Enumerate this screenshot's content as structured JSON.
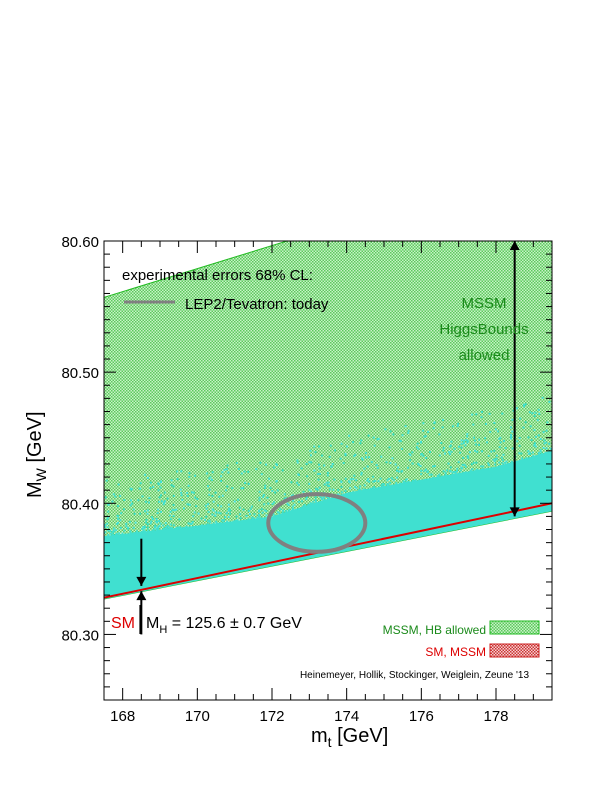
{
  "chart_data": {
    "type": "area",
    "xlabel": "m",
    "xlabel_sub": "t",
    "xlabel_unit": " [GeV]",
    "ylabel": "M",
    "ylabel_sub": "W",
    "ylabel_unit": " [GeV]",
    "xlim": [
      167.5,
      179.5
    ],
    "ylim": [
      80.25,
      80.6
    ],
    "x_ticks": [
      168,
      170,
      172,
      174,
      176,
      178
    ],
    "x_tick_labels": [
      "168",
      "170",
      "172",
      "174",
      "176",
      "178"
    ],
    "y_ticks": [
      80.3,
      80.4,
      80.5,
      80.6
    ],
    "y_tick_labels": [
      "80.30",
      "80.40",
      "80.50",
      "80.60"
    ],
    "regions": [
      {
        "name": "MSSM, HB allowed",
        "color": "#7fdc7f",
        "points": [
          [
            167.5,
            80.557
          ],
          [
            172.4,
            80.6
          ],
          [
            179.5,
            80.6
          ],
          [
            179.5,
            80.394
          ],
          [
            167.5,
            80.327
          ]
        ]
      },
      {
        "name": "MSSM cyan band",
        "color": "#40e0d0",
        "upper_edge": [
          [
            167.5,
            80.375
          ],
          [
            170,
            80.383
          ],
          [
            172,
            80.39
          ],
          [
            174,
            80.408
          ],
          [
            176,
            80.418
          ],
          [
            178,
            80.428
          ],
          [
            179.5,
            80.44
          ]
        ],
        "lower_edge": [
          [
            167.5,
            80.327
          ],
          [
            179.5,
            80.394
          ]
        ]
      },
      {
        "name": "SM, MSSM",
        "color": "#cc0000",
        "line": [
          [
            167.5,
            80.328
          ],
          [
            179.5,
            80.4
          ]
        ]
      }
    ],
    "ellipse": {
      "name": "LEP2/Tevatron: today",
      "center": [
        173.2,
        80.385
      ],
      "radius_x": 1.3,
      "radius_y": 0.022,
      "color": "#808080"
    },
    "arrows": [
      {
        "name": "MSSM range",
        "x": 178.5,
        "y_from": 80.6,
        "y_to": 80.39
      },
      {
        "name": "SM range down",
        "x": 168.5,
        "y_from": 80.373,
        "y_to": 80.337
      },
      {
        "name": "SM range up",
        "x": 168.5,
        "y_from": 80.3,
        "y_to": 80.333
      }
    ],
    "legend_title": "experimental errors 68% CL:",
    "legend_entry": "LEP2/Tevatron: today",
    "annotation_mssm": [
      "MSSM",
      "HiggsBounds",
      "allowed"
    ],
    "annotation_sm": "SM",
    "annotation_mh": "M",
    "annotation_mh_sub": "H",
    "annotation_mh_value": " = 125.6 ± 0.7 GeV",
    "legend_mssm_hb": "MSSM, HB allowed",
    "legend_sm_mssm": "SM, MSSM",
    "credit": "Heinemeyer, Hollik, Stockinger, Weiglein, Zeune '13"
  },
  "colors": {
    "green": "#7fdc7f",
    "green_text": "#1a8a1a",
    "cyan": "#40e0d0",
    "red": "#dd0000",
    "grey": "#808080"
  }
}
